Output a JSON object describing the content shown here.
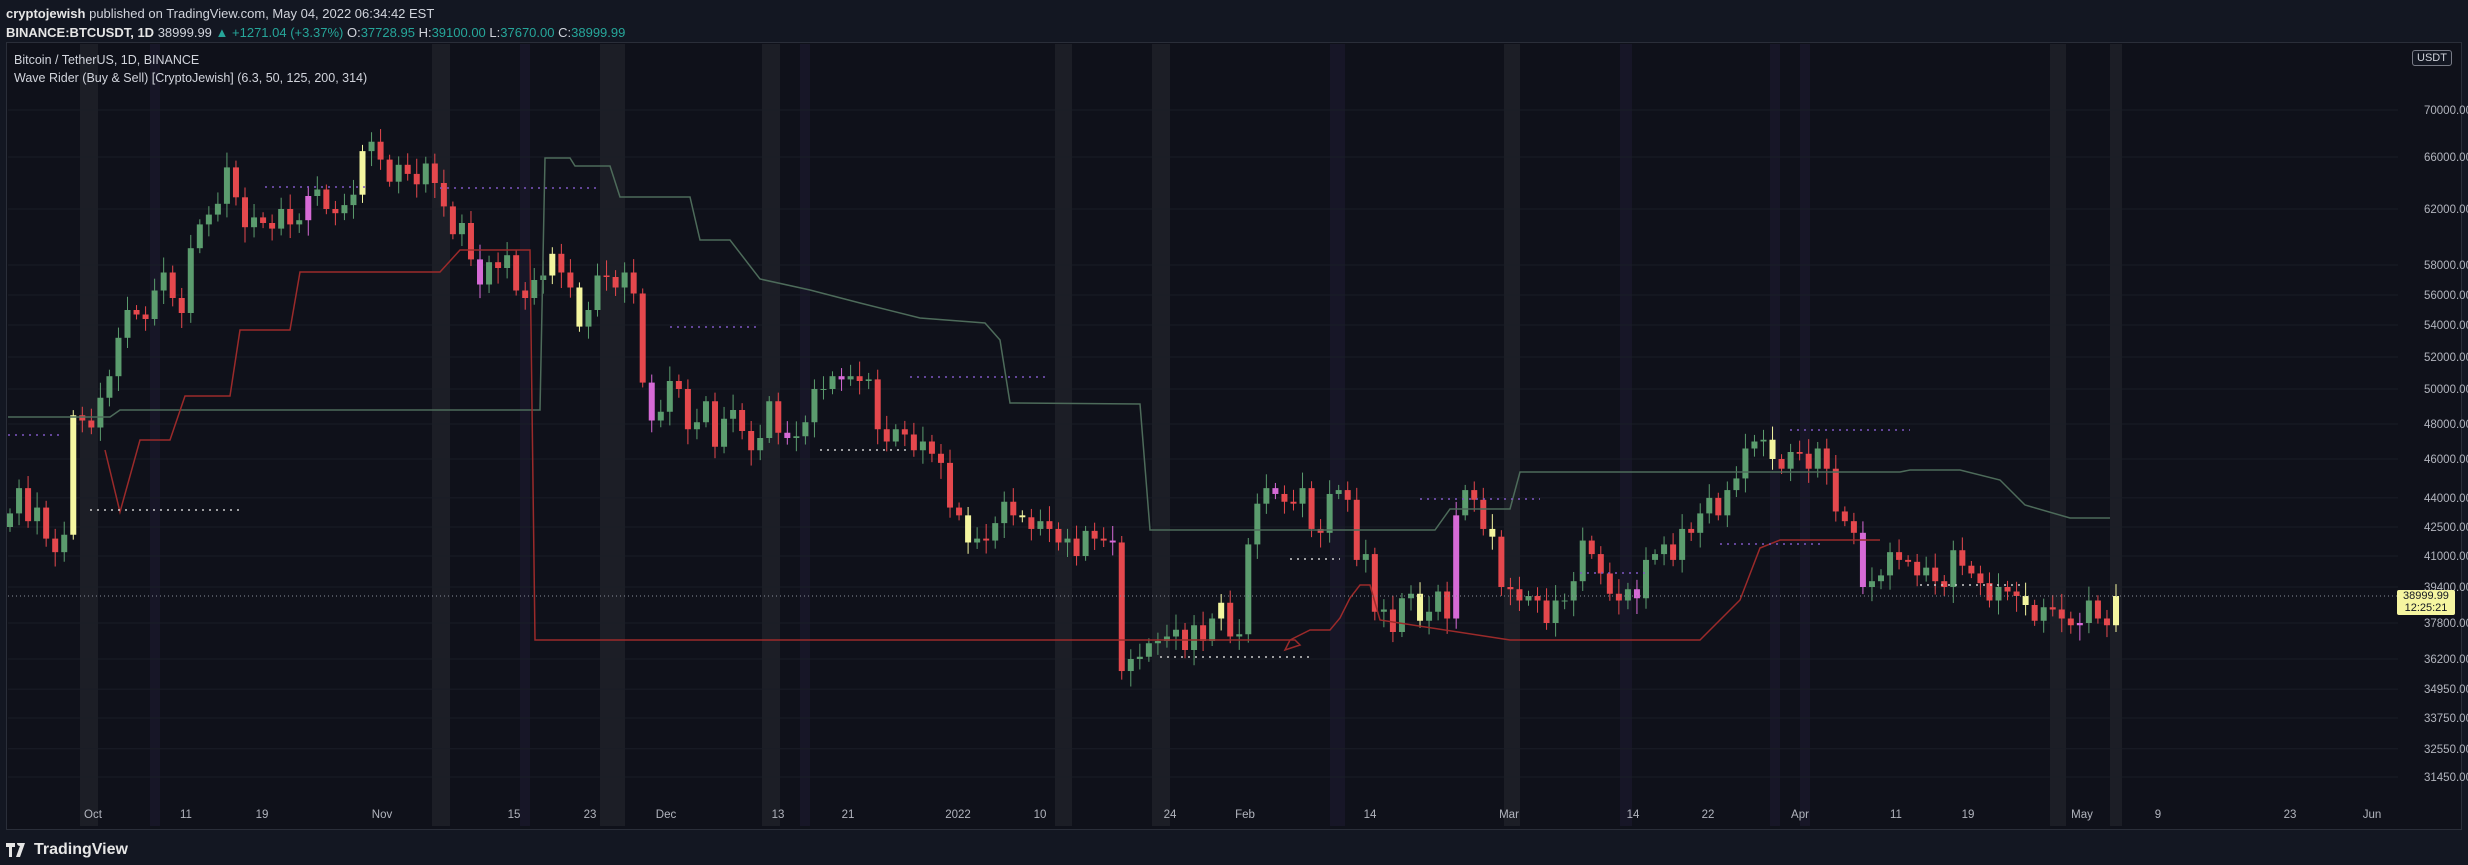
{
  "header": {
    "author": "cryptojewish",
    "published": "published on TradingView.com, May 04, 2022 06:34:42 EST",
    "symbol": "BINANCE:BTCUSDT, 1D",
    "last": "38999.99",
    "change": "▲ +1271.04 (+3.37%)",
    "o_label": "O:",
    "o": "37728.95",
    "h_label": "H:",
    "h": "39100.00",
    "l_label": "L:",
    "l": "37670.00",
    "c_label": "C:",
    "c": "38999.99"
  },
  "legend": {
    "title": "Bitcoin / TetherUS, 1D, BINANCE",
    "indicator": "Wave Rider (Buy & Sell) [CryptoJewish] (6.3, 50, 125, 200, 314)"
  },
  "unit": "USDT",
  "price_tag": {
    "price": "38999.99",
    "countdown": "12:25:21"
  },
  "footer": {
    "brand": "TradingView"
  },
  "colors": {
    "up": "#5b9c6e",
    "down": "#e5484d",
    "yellow": "#f4f6a0",
    "magenta": "#d66ad6",
    "upper_band": "#4d6b5a",
    "lower_band": "#9b2a2a",
    "background": "#0f111a"
  },
  "chart_data": {
    "type": "candlestick",
    "y_axis_labels": [
      "70000.00",
      "66000.00",
      "62000.00",
      "58000.00",
      "56000.00",
      "54000.00",
      "52000.00",
      "50000.00",
      "48000.00",
      "46000.00",
      "44000.00",
      "42500.00",
      "41000.00",
      "39400.00",
      "37800.00",
      "36200.00",
      "34950.00",
      "33750.00",
      "32550.00",
      "31450.00"
    ],
    "x_axis_labels": [
      "Oct",
      "11",
      "19",
      "Nov",
      "15",
      "23",
      "Dec",
      "13",
      "21",
      "2022",
      "10",
      "24",
      "Feb",
      "14",
      "Mar",
      "14",
      "22",
      "Apr",
      "11",
      "19",
      "May",
      "9",
      "23",
      "Jun"
    ],
    "ylim": [
      30800,
      72500
    ],
    "closes": [
      43200,
      44500,
      42800,
      43500,
      41900,
      41200,
      42100,
      48500,
      48200,
      47800,
      49500,
      50800,
      53200,
      55000,
      54700,
      54400,
      56300,
      57500,
      55800,
      54800,
      59200,
      60900,
      61600,
      62400,
      65200,
      62900,
      60700,
      61400,
      61000,
      60600,
      62000,
      60900,
      61200,
      63000,
      63500,
      62000,
      61700,
      62300,
      63100,
      66500,
      67300,
      65800,
      64100,
      65400,
      64700,
      63900,
      65500,
      64000,
      62200,
      60200,
      61000,
      58400,
      56700,
      58200,
      57800,
      58700,
      56300,
      55800,
      57000,
      57300,
      58800,
      57500,
      56500,
      53900,
      55000,
      57300,
      57200,
      56500,
      57500,
      56100,
      50400,
      48200,
      48700,
      50500,
      50000,
      47700,
      48100,
      49300,
      46700,
      48300,
      48800,
      47600,
      46500,
      47200,
      49300,
      47500,
      47200,
      47300,
      48100,
      50000,
      50000,
      50800,
      50600,
      50800,
      50500,
      50600,
      47700,
      47000,
      47700,
      47400,
      46500,
      47000,
      46300,
      45800,
      43500,
      43100,
      41700,
      41900,
      41800,
      42700,
      43800,
      43100,
      43000,
      42400,
      42800,
      42400,
      41700,
      41900,
      41000,
      42300,
      41900,
      41800,
      41700,
      35700,
      36200,
      36300,
      36900,
      37000,
      37200,
      37500,
      36600,
      37700,
      37000,
      38000,
      38700,
      37200,
      37300,
      41600,
      43700,
      44500,
      44200,
      43800,
      43700,
      44500,
      42400,
      42200,
      44200,
      44400,
      43900,
      40800,
      41100,
      38300,
      38400,
      37400,
      38900,
      39100,
      37900,
      38300,
      39200,
      38000,
      43100,
      44400,
      43900,
      42400,
      42000,
      39400,
      39300,
      38800,
      39000,
      38800,
      37800,
      38800,
      38800,
      39700,
      41800,
      41100,
      40100,
      39100,
      38800,
      39300,
      38900,
      40800,
      41100,
      41600,
      40800,
      42400,
      42200,
      43200,
      44000,
      43100,
      44400,
      45000,
      46600,
      47000,
      47100,
      46000,
      45500,
      46400,
      46300,
      45500,
      46600,
      45500,
      43300,
      42800,
      42200,
      39400,
      39700,
      40000,
      41200,
      40800,
      40700,
      40000,
      40400,
      39700,
      39400,
      41300,
      40500,
      40100,
      39600,
      38800,
      39400,
      39200,
      39000,
      38600,
      37900,
      38500,
      38400,
      38000,
      37700,
      37800,
      38800,
      38000,
      37700,
      39000
    ]
  }
}
